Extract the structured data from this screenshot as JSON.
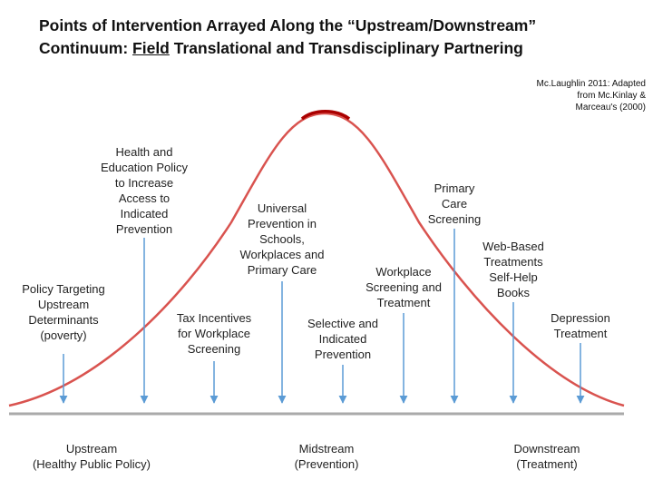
{
  "title": {
    "line1": "Points of Intervention Arrayed Along the “Upstream/Downstream”",
    "line2_start": "Continuum: ",
    "line2_emphasis": "Field",
    "line2_end": " Translational and Transdisciplinary Partnering"
  },
  "citation": [
    "Mc.Laughlin 2011: Adapted",
    "from Mc.Kinlay &",
    "Marceau's (2000)"
  ],
  "interventions": [
    {
      "lines": [
        "Policy Targeting",
        "Upstream",
        "Determinants",
        "(poverty)"
      ]
    },
    {
      "lines": [
        "Health and",
        "Education Policy",
        "to Increase",
        "Access to",
        "Indicated",
        "Prevention"
      ]
    },
    {
      "lines": [
        "Tax Incentives",
        "for Workplace",
        "Screening"
      ]
    },
    {
      "lines": [
        "Universal",
        "Prevention in",
        "Schools,",
        "Workplaces and",
        "Primary Care"
      ]
    },
    {
      "lines": [
        "Selective and",
        "Indicated",
        "Prevention"
      ]
    },
    {
      "lines": [
        "Workplace",
        "Screening and",
        "Treatment"
      ]
    },
    {
      "lines": [
        "Primary",
        "Care",
        "Screening"
      ]
    },
    {
      "lines": [
        "Web-Based",
        "Treatments",
        "Self-Help",
        "Books"
      ]
    },
    {
      "lines": [
        "Depression",
        "Treatment"
      ]
    }
  ],
  "continuum": [
    {
      "lines": [
        "Upstream",
        "(Healthy Public Policy)"
      ]
    },
    {
      "lines": [
        "Midstream",
        "(Prevention)"
      ]
    },
    {
      "lines": [
        "Downstream",
        "(Treatment)"
      ]
    }
  ]
}
